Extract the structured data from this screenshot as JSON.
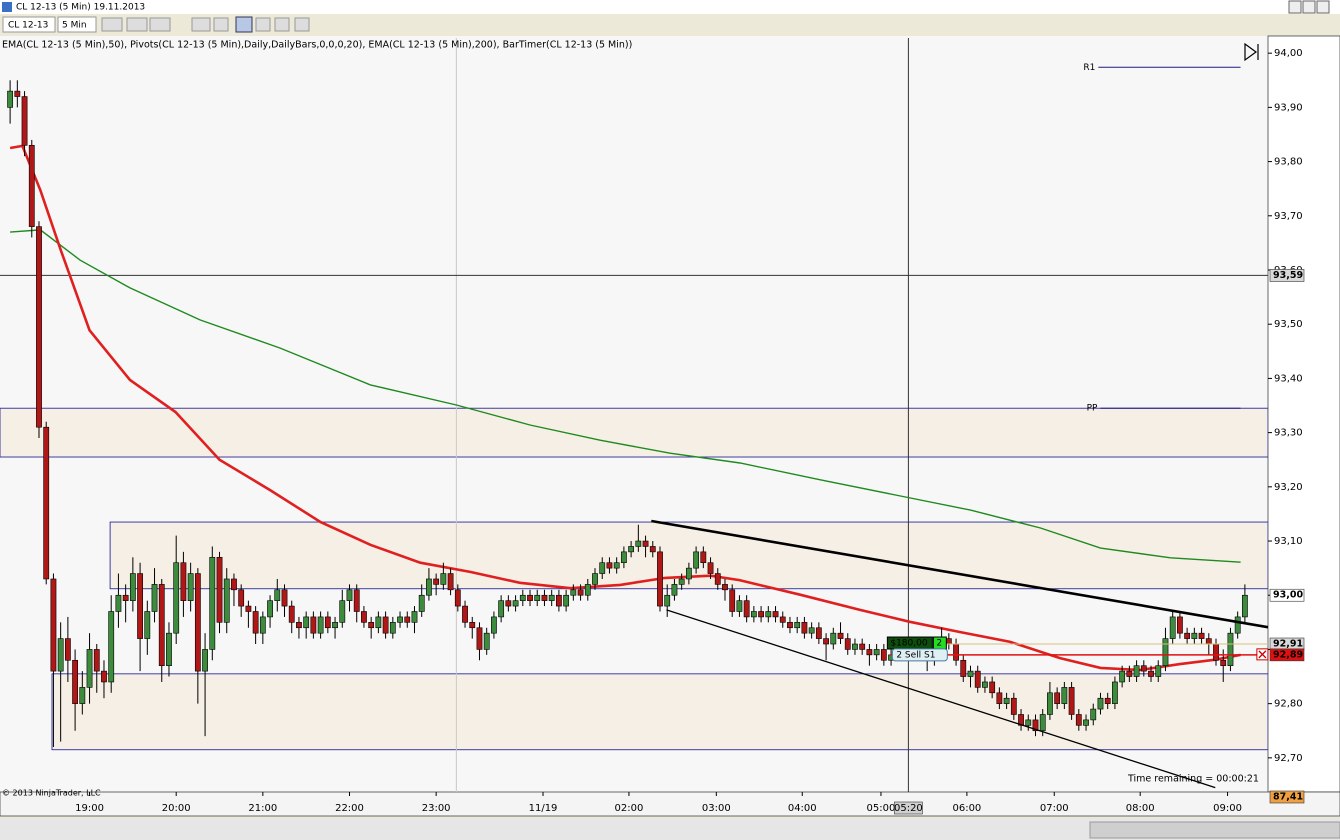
{
  "window": {
    "title": "CL 12-13 (5 Min)  19.11.2013"
  },
  "toolbar": {
    "instrument": "CL 12-13",
    "interval": "5 Min"
  },
  "chart": {
    "type": "candlestick",
    "indicator_label": "EMA(CL 12-13 (5 Min),50), Pivots(CL 12-13 (5 Min),Daily,DailyBars,0,0,0,20), EMA(CL 12-13 (5 Min),200), BarTimer(CL 12-13 (5 Min))",
    "xlim": [
      -1.4,
      174.2
    ],
    "ylim": [
      92.637,
      94.028
    ],
    "yticks": [
      {
        "value": 94.0,
        "label": "94,00"
      },
      {
        "value": 93.9,
        "label": "93,90"
      },
      {
        "value": 93.8,
        "label": "93,80"
      },
      {
        "value": 93.7,
        "label": "93,70"
      },
      {
        "value": 93.6,
        "label": "93,60"
      },
      {
        "value": 93.5,
        "label": "93,50"
      },
      {
        "value": 93.4,
        "label": "93,40"
      },
      {
        "value": 93.3,
        "label": "93,30"
      },
      {
        "value": 93.2,
        "label": "93,20"
      },
      {
        "value": 93.1,
        "label": "93,10"
      },
      {
        "value": 93.0,
        "label": "93,00"
      },
      {
        "value": 92.9,
        "label": "92,90"
      },
      {
        "value": 92.8,
        "label": "92,80"
      },
      {
        "value": 92.7,
        "label": "92,70"
      }
    ],
    "xticks": [
      {
        "value": 11,
        "label": "19:00"
      },
      {
        "value": 23,
        "label": "20:00"
      },
      {
        "value": 35,
        "label": "21:00"
      },
      {
        "value": 47,
        "label": "22:00"
      },
      {
        "value": 59,
        "label": "23:00"
      },
      {
        "value": 73.8,
        "label": "11/19"
      },
      {
        "value": 85.7,
        "label": "02:00"
      },
      {
        "value": 97.8,
        "label": "03:00"
      },
      {
        "value": 109.7,
        "label": "04:00"
      },
      {
        "value": 120.6,
        "label": "05:00"
      },
      {
        "value": 132.5,
        "label": "06:00"
      },
      {
        "value": 144.6,
        "label": "07:00"
      },
      {
        "value": 156.5,
        "label": "08:00"
      },
      {
        "value": 168.6,
        "label": "09:00"
      }
    ],
    "up_color": "#3d8b3d",
    "down_color": "#b01818",
    "candles": [
      [
        93.9,
        93.95,
        93.87,
        93.93
      ],
      [
        93.93,
        93.95,
        93.9,
        93.92
      ],
      [
        93.92,
        93.93,
        93.81,
        93.83
      ],
      [
        93.83,
        93.84,
        93.66,
        93.68
      ],
      [
        93.68,
        93.69,
        93.29,
        93.31
      ],
      [
        93.31,
        93.32,
        93.02,
        93.03
      ],
      [
        93.03,
        93.04,
        92.72,
        92.86
      ],
      [
        92.86,
        92.95,
        92.73,
        92.92
      ],
      [
        92.92,
        92.96,
        92.84,
        92.88
      ],
      [
        92.88,
        92.9,
        92.75,
        92.8
      ],
      [
        92.8,
        92.86,
        92.78,
        92.83
      ],
      [
        92.83,
        92.93,
        92.8,
        92.9
      ],
      [
        92.9,
        92.91,
        92.82,
        92.86
      ],
      [
        92.86,
        92.88,
        92.81,
        92.84
      ],
      [
        92.84,
        93.0,
        92.82,
        92.97
      ],
      [
        92.97,
        93.04,
        92.94,
        93.0
      ],
      [
        93.0,
        93.02,
        92.95,
        92.99
      ],
      [
        92.99,
        93.07,
        92.97,
        93.04
      ],
      [
        93.04,
        93.06,
        92.86,
        92.92
      ],
      [
        92.92,
        92.99,
        92.89,
        92.97
      ],
      [
        92.97,
        93.05,
        92.95,
        93.02
      ],
      [
        93.02,
        93.03,
        92.84,
        92.87
      ],
      [
        92.87,
        92.95,
        92.85,
        92.93
      ],
      [
        92.93,
        93.11,
        92.91,
        93.06
      ],
      [
        93.06,
        93.08,
        92.96,
        92.99
      ],
      [
        92.99,
        93.06,
        92.97,
        93.04
      ],
      [
        93.04,
        93.05,
        92.8,
        92.86
      ],
      [
        92.86,
        92.93,
        92.74,
        92.9
      ],
      [
        92.9,
        93.09,
        92.88,
        93.07
      ],
      [
        93.07,
        93.08,
        92.93,
        92.95
      ],
      [
        92.95,
        93.05,
        92.93,
        93.03
      ],
      [
        93.03,
        93.04,
        92.98,
        93.01
      ],
      [
        93.01,
        93.02,
        92.96,
        92.98
      ],
      [
        92.98,
        92.99,
        92.94,
        92.97
      ],
      [
        92.97,
        92.98,
        92.91,
        92.93
      ],
      [
        92.93,
        92.97,
        92.91,
        92.96
      ],
      [
        92.96,
        93.0,
        92.94,
        92.99
      ],
      [
        92.99,
        93.03,
        92.97,
        93.01
      ],
      [
        93.01,
        93.02,
        92.96,
        92.98
      ],
      [
        92.98,
        92.99,
        92.93,
        92.95
      ],
      [
        92.95,
        92.96,
        92.92,
        92.94
      ],
      [
        92.94,
        92.97,
        92.92,
        92.96
      ],
      [
        92.96,
        92.97,
        92.92,
        92.93
      ],
      [
        92.93,
        92.97,
        92.92,
        92.96
      ],
      [
        92.96,
        92.97,
        92.93,
        92.94
      ],
      [
        92.94,
        92.96,
        92.92,
        92.95
      ],
      [
        92.95,
        93.01,
        92.94,
        92.99
      ],
      [
        92.99,
        93.02,
        92.97,
        93.01
      ],
      [
        93.01,
        93.02,
        92.95,
        92.97
      ],
      [
        92.97,
        92.98,
        92.94,
        92.95
      ],
      [
        92.95,
        92.96,
        92.92,
        92.94
      ],
      [
        92.94,
        92.97,
        92.93,
        92.96
      ],
      [
        92.96,
        92.97,
        92.92,
        92.93
      ],
      [
        92.93,
        92.96,
        92.92,
        92.95
      ],
      [
        92.95,
        92.97,
        92.94,
        92.96
      ],
      [
        92.96,
        92.97,
        92.94,
        92.95
      ],
      [
        92.95,
        92.98,
        92.93,
        92.97
      ],
      [
        92.97,
        93.02,
        92.96,
        93.0
      ],
      [
        93.0,
        93.05,
        92.99,
        93.03
      ],
      [
        93.03,
        93.04,
        93.0,
        93.02
      ],
      [
        93.02,
        93.06,
        93.01,
        93.04
      ],
      [
        93.04,
        93.05,
        93.0,
        93.01
      ],
      [
        93.01,
        93.02,
        92.97,
        92.98
      ],
      [
        92.98,
        92.99,
        92.94,
        92.95
      ],
      [
        92.95,
        92.96,
        92.92,
        92.94
      ],
      [
        92.94,
        92.95,
        92.88,
        92.9
      ],
      [
        92.9,
        92.94,
        92.89,
        92.93
      ],
      [
        92.93,
        92.97,
        92.92,
        92.96
      ],
      [
        92.96,
        93.0,
        92.95,
        92.99
      ],
      [
        92.99,
        93.0,
        92.97,
        92.98
      ],
      [
        92.98,
        93.0,
        92.97,
        92.99
      ],
      [
        92.99,
        93.01,
        92.98,
        93.0
      ],
      [
        93.0,
        93.01,
        92.98,
        92.99
      ],
      [
        92.99,
        93.01,
        92.98,
        93.0
      ],
      [
        93.0,
        93.01,
        92.98,
        92.99
      ],
      [
        92.99,
        93.01,
        92.98,
        93.0
      ],
      [
        93.0,
        93.01,
        92.97,
        92.98
      ],
      [
        92.98,
        93.01,
        92.97,
        93.0
      ],
      [
        93.0,
        93.02,
        92.99,
        93.01
      ],
      [
        93.01,
        93.02,
        92.99,
        93.0
      ],
      [
        93.0,
        93.03,
        92.99,
        93.02
      ],
      [
        93.02,
        93.05,
        93.01,
        93.04
      ],
      [
        93.04,
        93.07,
        93.03,
        93.06
      ],
      [
        93.06,
        93.07,
        93.04,
        93.05
      ],
      [
        93.05,
        93.07,
        93.04,
        93.06
      ],
      [
        93.06,
        93.09,
        93.05,
        93.08
      ],
      [
        93.08,
        93.1,
        93.07,
        93.09
      ],
      [
        93.09,
        93.13,
        93.08,
        93.1
      ],
      [
        93.1,
        93.11,
        93.07,
        93.09
      ],
      [
        93.09,
        93.1,
        93.07,
        93.08
      ],
      [
        93.08,
        93.09,
        92.97,
        92.98
      ],
      [
        92.98,
        93.02,
        92.96,
        93.0
      ],
      [
        93.0,
        93.03,
        92.99,
        93.02
      ],
      [
        93.02,
        93.04,
        93.01,
        93.03
      ],
      [
        93.03,
        93.06,
        93.02,
        93.05
      ],
      [
        93.05,
        93.09,
        93.04,
        93.08
      ],
      [
        93.08,
        93.09,
        93.05,
        93.06
      ],
      [
        93.06,
        93.07,
        93.03,
        93.04
      ],
      [
        93.04,
        93.05,
        93.01,
        93.02
      ],
      [
        93.02,
        93.03,
        92.99,
        93.01
      ],
      [
        93.01,
        93.02,
        92.96,
        92.97
      ],
      [
        92.97,
        93.0,
        92.96,
        92.99
      ],
      [
        92.99,
        93.0,
        92.95,
        92.96
      ],
      [
        92.96,
        92.98,
        92.95,
        92.97
      ],
      [
        92.97,
        92.98,
        92.95,
        92.96
      ],
      [
        92.96,
        92.98,
        92.95,
        92.97
      ],
      [
        92.97,
        92.98,
        92.95,
        92.96
      ],
      [
        92.96,
        92.97,
        92.94,
        92.95
      ],
      [
        92.95,
        92.96,
        92.93,
        92.94
      ],
      [
        92.94,
        92.96,
        92.93,
        92.95
      ],
      [
        92.95,
        92.96,
        92.92,
        92.93
      ],
      [
        92.93,
        92.95,
        92.92,
        92.94
      ],
      [
        92.94,
        92.95,
        92.91,
        92.92
      ],
      [
        92.92,
        92.93,
        92.88,
        92.91
      ],
      [
        92.91,
        92.94,
        92.9,
        92.93
      ],
      [
        92.93,
        92.95,
        92.91,
        92.92
      ],
      [
        92.92,
        92.93,
        92.89,
        92.9
      ],
      [
        92.9,
        92.92,
        92.89,
        92.91
      ],
      [
        92.91,
        92.92,
        92.89,
        92.9
      ],
      [
        92.9,
        92.91,
        92.87,
        92.89
      ],
      [
        92.89,
        92.91,
        92.88,
        92.9
      ],
      [
        92.9,
        92.91,
        92.87,
        92.88
      ],
      [
        92.88,
        92.9,
        92.87,
        92.89
      ],
      [
        92.89,
        92.91,
        92.88,
        92.9
      ],
      [
        92.9,
        92.91,
        92.88,
        92.89
      ],
      [
        92.89,
        92.92,
        92.88,
        92.91
      ],
      [
        92.91,
        92.92,
        92.89,
        92.9
      ],
      [
        92.9,
        92.91,
        92.86,
        92.88
      ],
      [
        92.88,
        92.91,
        92.87,
        92.9
      ],
      [
        92.9,
        92.94,
        92.89,
        92.92
      ],
      [
        92.92,
        92.93,
        92.9,
        92.91
      ],
      [
        92.91,
        92.92,
        92.87,
        92.88
      ],
      [
        92.88,
        92.89,
        92.84,
        92.85
      ],
      [
        92.85,
        92.87,
        92.83,
        92.86
      ],
      [
        92.86,
        92.87,
        92.82,
        92.83
      ],
      [
        92.83,
        92.85,
        92.82,
        92.84
      ],
      [
        92.84,
        92.85,
        92.81,
        92.82
      ],
      [
        92.82,
        92.83,
        92.79,
        92.8
      ],
      [
        92.8,
        92.82,
        92.79,
        92.81
      ],
      [
        92.81,
        92.82,
        92.77,
        92.78
      ],
      [
        92.78,
        92.79,
        92.75,
        92.76
      ],
      [
        92.76,
        92.78,
        92.75,
        92.77
      ],
      [
        92.77,
        92.78,
        92.74,
        92.75
      ],
      [
        92.75,
        92.79,
        92.74,
        92.78
      ],
      [
        92.78,
        92.84,
        92.77,
        92.82
      ],
      [
        92.82,
        92.83,
        92.79,
        92.8
      ],
      [
        92.8,
        92.84,
        92.79,
        92.83
      ],
      [
        92.83,
        92.84,
        92.77,
        92.78
      ],
      [
        92.78,
        92.79,
        92.75,
        92.76
      ],
      [
        92.76,
        92.78,
        92.75,
        92.77
      ],
      [
        92.77,
        92.8,
        92.76,
        92.79
      ],
      [
        92.79,
        92.82,
        92.78,
        92.81
      ],
      [
        92.81,
        92.82,
        92.79,
        92.8
      ],
      [
        92.8,
        92.85,
        92.79,
        92.84
      ],
      [
        92.84,
        92.87,
        92.83,
        92.86
      ],
      [
        92.86,
        92.87,
        92.84,
        92.85
      ],
      [
        92.85,
        92.88,
        92.84,
        92.87
      ],
      [
        92.87,
        92.88,
        92.85,
        92.86
      ],
      [
        92.86,
        92.87,
        92.84,
        92.85
      ],
      [
        92.85,
        92.88,
        92.84,
        92.87
      ],
      [
        92.87,
        92.94,
        92.86,
        92.92
      ],
      [
        92.92,
        92.97,
        92.91,
        92.96
      ],
      [
        92.96,
        92.97,
        92.92,
        92.93
      ],
      [
        92.93,
        92.94,
        92.91,
        92.92
      ],
      [
        92.92,
        92.94,
        92.91,
        92.93
      ],
      [
        92.93,
        92.94,
        92.91,
        92.92
      ],
      [
        92.92,
        92.93,
        92.89,
        92.91
      ],
      [
        92.91,
        92.92,
        92.87,
        92.88
      ],
      [
        92.88,
        92.9,
        92.84,
        92.87
      ],
      [
        92.87,
        92.94,
        92.86,
        92.93
      ],
      [
        92.93,
        92.97,
        92.92,
        92.96
      ],
      [
        92.96,
        93.02,
        92.95,
        93.0
      ]
    ],
    "ema50": {
      "color": "#e02020",
      "x": [
        0,
        1.7,
        4.2,
        7,
        11,
        16.6,
        22.9,
        29,
        36,
        43,
        49.9,
        56.8,
        63.7,
        70.6,
        77.6,
        84.5,
        90.7,
        97,
        101,
        109.4,
        117.7,
        124.6,
        131.6,
        138.5,
        145.4,
        151,
        156.5,
        162,
        166.9,
        170.4
      ],
      "values": [
        93.825,
        93.829,
        93.747,
        93.637,
        93.489,
        93.397,
        93.338,
        93.25,
        93.194,
        93.135,
        93.093,
        93.06,
        93.043,
        93.023,
        93.013,
        93.019,
        93.032,
        93.036,
        93.028,
        93.001,
        92.973,
        92.951,
        92.932,
        92.914,
        92.884,
        92.866,
        92.862,
        92.873,
        92.881,
        92.89
      ]
    },
    "ema200": {
      "color": "#1f8a1f",
      "x": [
        0,
        4.2,
        9.7,
        16.6,
        26.3,
        37.4,
        49.9,
        61.8,
        72,
        81.7,
        91.4,
        101.1,
        112.2,
        123.3,
        133,
        142.7,
        151,
        160.7,
        170.4
      ],
      "values": [
        93.67,
        93.674,
        93.618,
        93.567,
        93.508,
        93.456,
        93.388,
        93.351,
        93.314,
        93.286,
        93.262,
        93.244,
        93.213,
        93.183,
        93.157,
        93.124,
        93.087,
        93.069,
        93.061
      ]
    },
    "zones": [
      {
        "x": [
          -1.4,
          174.2
        ],
        "values": [
          93.345,
          93.255
        ]
      },
      {
        "x": [
          13.85,
          174.2
        ],
        "values": [
          93.135,
          93.012
        ]
      },
      {
        "x": [
          5.8,
          174.2
        ],
        "values": [
          92.855,
          92.715
        ]
      }
    ],
    "pivots": [
      {
        "name": "R1",
        "value": 93.974,
        "x": [
          150.7,
          170.4
        ]
      },
      {
        "name": "PP",
        "value": 93.345,
        "x": [
          151,
          170.4
        ]
      }
    ],
    "trendlines": [
      {
        "x": [
          88.8,
          174.2
        ],
        "values": [
          93.137,
          92.941
        ]
      },
      {
        "x": [
          90.9,
          166.9
        ],
        "values": [
          92.973,
          92.645
        ]
      }
    ],
    "session_break": 61.8,
    "crosshair": {
      "x": {
        "value": 124.4,
        "label": "05:20"
      },
      "y": {
        "value": 93.59,
        "label": "93,59"
      }
    },
    "position": {
      "pnl": "$180,00",
      "quantity": "2",
      "value": 92.91,
      "label": "92,91",
      "x": [
        121.9,
        174.2
      ]
    },
    "order": {
      "label": "2 Sell S1",
      "value": 92.89,
      "price_label": "92,89",
      "x": [
        121.9,
        172.8
      ]
    },
    "last_price": {
      "value": 93.0,
      "label": "93,00"
    },
    "other_marker": {
      "value": 87.41,
      "label": "87,41"
    },
    "time_remaining": "Time remaining = 00:00:21",
    "copyright": "© 2013 NinjaTrader, LLC"
  }
}
